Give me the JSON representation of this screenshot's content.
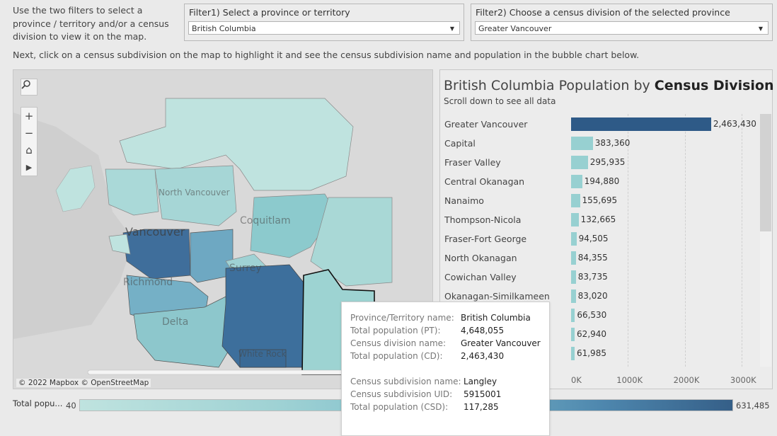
{
  "intro_text": "Use the two filters to select a province / territory and/or a census division to view it on the map.",
  "filter1": {
    "title": "Filter1) Select a province or territory",
    "value": "British Columbia"
  },
  "filter2": {
    "title": "Filter2) Choose a census division of the selected province",
    "value": "Greater Vancouver"
  },
  "next_text": "Next, click on a census subdivision on the map to highlight it and see the census subdivision name and population in the bubble chart below.",
  "map": {
    "attribution": "© 2022 Mapbox  © OpenStreetMap",
    "place_labels": [
      "North Vancouver",
      "Vancouver",
      "Coquitlam",
      "Surrey",
      "Richmond",
      "Delta",
      "White Rock"
    ],
    "controls": [
      "search-icon",
      "zoom-in-icon",
      "zoom-out-icon",
      "home-icon",
      "play-icon"
    ]
  },
  "chart_data": {
    "type": "bar",
    "title_prefix": "British Columbia Population by ",
    "title_bold": "Census Division",
    "subtitle": "Scroll down to see all data",
    "categories": [
      "Greater Vancouver",
      "Capital",
      "Fraser Valley",
      "Central Okanagan",
      "Nanaimo",
      "Thompson-Nicola",
      "Fraser-Fort George",
      "North Okanagan",
      "Cowichan Valley",
      "Okanagan-Similkameen",
      "",
      "",
      ""
    ],
    "values": [
      2463430,
      383360,
      295935,
      194880,
      155695,
      132665,
      94505,
      84355,
      83735,
      83020,
      66530,
      62940,
      61985
    ],
    "value_labels": [
      "2,463,430",
      "383,360",
      "295,935",
      "194,880",
      "155,695",
      "132,665",
      "94,505",
      "84,355",
      "83,735",
      "83,020",
      "66,530",
      "62,940",
      "61,985"
    ],
    "highlight_color": "#2e5a87",
    "bar_color": "#97d0d1",
    "xticks": [
      "0K",
      "1000K",
      "2000K",
      "3000K"
    ],
    "xlim": [
      0,
      3300000
    ],
    "grid": true
  },
  "legend": {
    "label": "Total popu...",
    "min": "40",
    "max": "631,485"
  },
  "tooltip": {
    "pt_label": "Province/Territory name:",
    "pt_value": "British Columbia",
    "ptpop_label": "Total population (PT):",
    "ptpop_value": "4,648,055",
    "cd_label": "Census division name:",
    "cd_value": "Greater Vancouver",
    "cdpop_label": "Total population (CD):",
    "cdpop_value": "2,463,430",
    "csd_label": "Census subdivision name:",
    "csd_value": "Langley",
    "uid_label": "Census subdivision UID:",
    "uid_value": "5915001",
    "csdpop_label": "Total population (CSD):",
    "csdpop_value": "117,285"
  }
}
